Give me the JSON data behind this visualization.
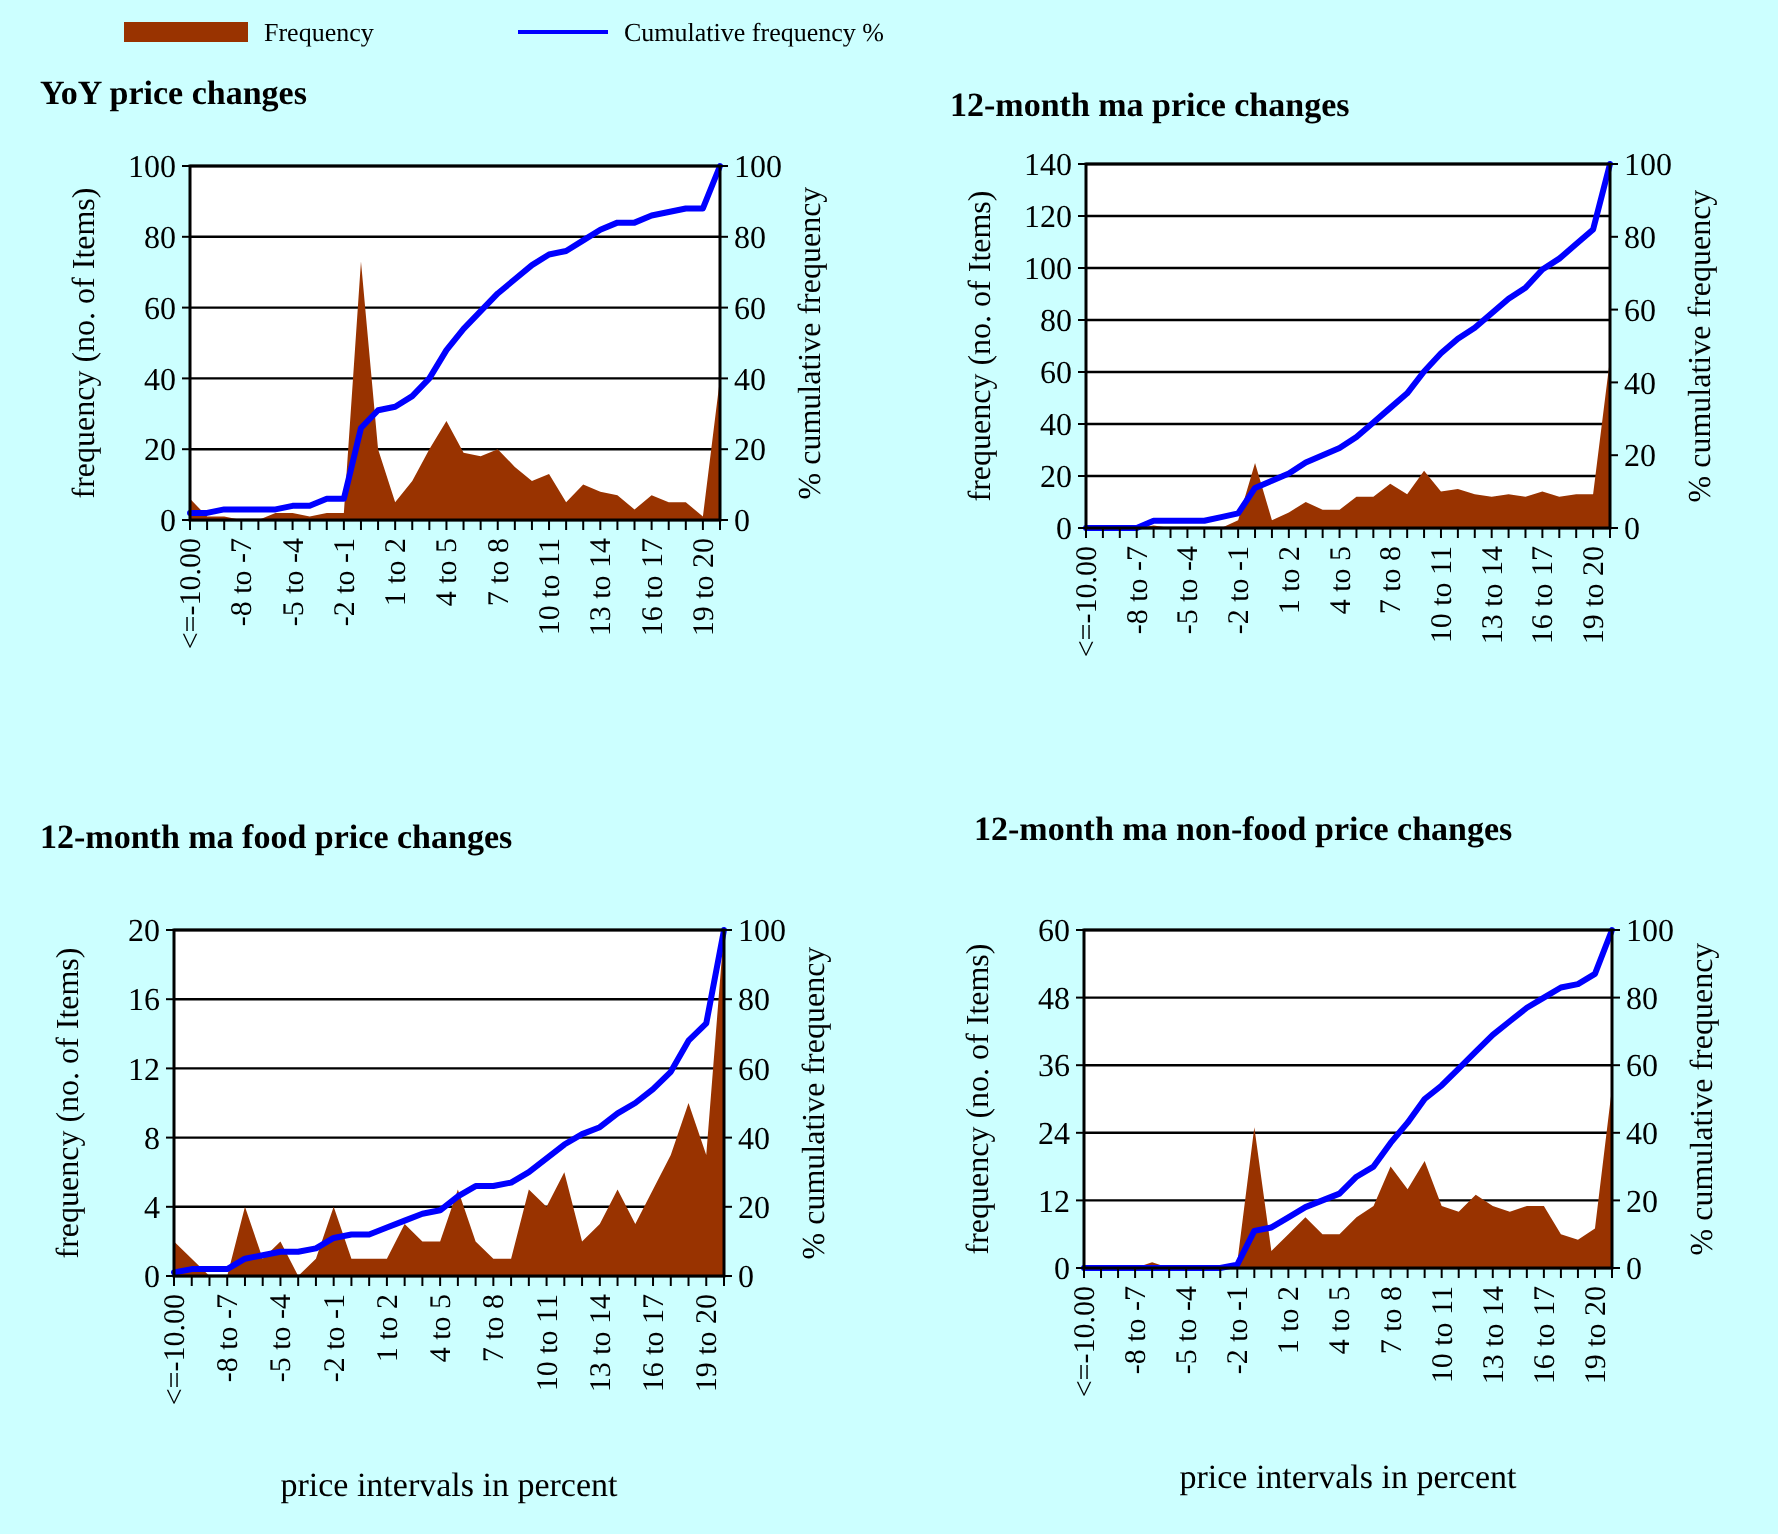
{
  "chart_data": [
    {
      "type": "area",
      "title": "YoY price changes",
      "ylabel": "frequency (no. of Items)",
      "y2label": "% cumulative frequency",
      "categories": [
        "<=-10.00",
        null,
        null,
        "-8 to -7",
        null,
        null,
        "-5 to -4",
        null,
        null,
        "-2 to -1",
        null,
        null,
        "1 to 2",
        null,
        null,
        "4 to 5",
        null,
        null,
        "7 to 8",
        null,
        null,
        "10 to 11",
        null,
        null,
        "13 to 14",
        null,
        null,
        "16 to 17",
        null,
        null,
        "19 to 20",
        null
      ],
      "ylim": [
        0,
        100
      ],
      "yticks": [
        0,
        20,
        40,
        60,
        80,
        100
      ],
      "y2lim": [
        0,
        100
      ],
      "y2ticks": [
        0,
        20,
        40,
        60,
        80,
        100
      ],
      "grid": "y",
      "legend": "top",
      "series": [
        {
          "name": "Frequency",
          "type": "area",
          "color": "#993300",
          "values": [
            6,
            1,
            1,
            0,
            0,
            2,
            2,
            1,
            2,
            2,
            73,
            20,
            5,
            11,
            20,
            28,
            19,
            18,
            20,
            15,
            11,
            13,
            5,
            10,
            8,
            7,
            3,
            7,
            5,
            5,
            1,
            40
          ]
        },
        {
          "name": "Cumulative frequency %",
          "type": "line",
          "axis": "y2",
          "color": "#0000ff",
          "values": [
            2,
            2,
            3,
            3,
            3,
            3,
            4,
            4,
            6,
            6,
            26,
            31,
            32,
            35,
            40,
            48,
            54,
            59,
            64,
            68,
            72,
            75,
            76,
            79,
            82,
            84,
            84,
            86,
            87,
            88,
            88,
            100
          ]
        }
      ]
    },
    {
      "type": "area",
      "title": "12-month ma price changes",
      "ylabel": "frequency (no. of Items)",
      "y2label": "% cumulative frequency",
      "categories": [
        "<=-10.00",
        null,
        null,
        "-8 to -7",
        null,
        null,
        "-5 to -4",
        null,
        null,
        "-2 to -1",
        null,
        null,
        "1 to 2",
        null,
        null,
        "4 to 5",
        null,
        null,
        "7 to 8",
        null,
        null,
        "10 to 11",
        null,
        null,
        "13 to 14",
        null,
        null,
        "16 to 17",
        null,
        null,
        "19 to 20",
        null
      ],
      "ylim": [
        0,
        140
      ],
      "yticks": [
        0,
        20,
        40,
        60,
        80,
        100,
        120,
        140
      ],
      "y2lim": [
        0,
        100
      ],
      "y2ticks": [
        0,
        20,
        40,
        60,
        80,
        100
      ],
      "grid": "y",
      "series": [
        {
          "type": "area",
          "color": "#993300",
          "values": [
            0,
            0,
            0,
            0,
            1,
            0,
            0,
            0,
            0,
            3,
            25,
            3,
            6,
            10,
            7,
            7,
            12,
            12,
            17,
            13,
            22,
            14,
            15,
            13,
            12,
            13,
            12,
            14,
            12,
            13,
            13,
            65
          ]
        },
        {
          "type": "line",
          "axis": "y2",
          "color": "#0000ff",
          "values": [
            0,
            0,
            0,
            0,
            2,
            2,
            2,
            2,
            3,
            4,
            11,
            13,
            15,
            18,
            20,
            22,
            25,
            29,
            33,
            37,
            43,
            48,
            52,
            55,
            59,
            63,
            66,
            71,
            74,
            78,
            82,
            100
          ]
        }
      ]
    },
    {
      "type": "area",
      "title": "12-month ma food price changes",
      "xlabel": "price intervals in percent",
      "ylabel": "frequency (no. of Items)",
      "y2label": "% cumulative frequency",
      "categories": [
        "<=-10.00",
        null,
        null,
        "-8 to -7",
        null,
        null,
        "-5 to -4",
        null,
        null,
        "-2 to -1",
        null,
        null,
        "1 to 2",
        null,
        null,
        "4 to 5",
        null,
        null,
        "7 to 8",
        null,
        null,
        "10 to 11",
        null,
        null,
        "13 to 14",
        null,
        null,
        "16 to 17",
        null,
        null,
        "19 to 20",
        null
      ],
      "ylim": [
        0,
        20
      ],
      "yticks": [
        0,
        4,
        8,
        12,
        16,
        20
      ],
      "y2lim": [
        0,
        100
      ],
      "y2ticks": [
        0,
        20,
        40,
        60,
        80,
        100
      ],
      "grid": "y",
      "series": [
        {
          "type": "area",
          "color": "#993300",
          "values": [
            2,
            1,
            0,
            0,
            4,
            1,
            2,
            0,
            1,
            4,
            1,
            1,
            1,
            3,
            2,
            2,
            5,
            2,
            1,
            1,
            5,
            4,
            6,
            2,
            3,
            5,
            3,
            5,
            7,
            10,
            7,
            20
          ]
        },
        {
          "type": "line",
          "axis": "y2",
          "color": "#0000ff",
          "values": [
            1,
            2,
            2,
            2,
            5,
            6,
            7,
            7,
            8,
            11,
            12,
            12,
            14,
            16,
            18,
            19,
            23,
            26,
            26,
            27,
            30,
            34,
            38,
            41,
            43,
            47,
            50,
            54,
            59,
            68,
            73,
            100
          ]
        }
      ]
    },
    {
      "type": "area",
      "title": "12-month ma non-food price changes",
      "xlabel": "price intervals in percent",
      "ylabel": "frequency (no. of Items)",
      "y2label": "% cumulative frequency",
      "categories": [
        "<=-10.00",
        null,
        null,
        "-8 to -7",
        null,
        null,
        "-5 to -4",
        null,
        null,
        "-2 to -1",
        null,
        null,
        "1 to 2",
        null,
        null,
        "4 to 5",
        null,
        null,
        "7 to 8",
        null,
        null,
        "10 to 11",
        null,
        null,
        "13 to 14",
        null,
        null,
        "16 to 17",
        null,
        null,
        "19 to 20",
        null
      ],
      "ylim": [
        0,
        60
      ],
      "yticks": [
        0,
        12,
        24,
        36,
        48,
        60
      ],
      "y2lim": [
        0,
        100
      ],
      "y2ticks": [
        0,
        20,
        40,
        60,
        80,
        100
      ],
      "grid": "y",
      "series": [
        {
          "type": "area",
          "color": "#993300",
          "values": [
            0,
            0,
            0,
            0,
            1,
            0,
            0,
            0,
            0,
            1,
            25,
            3,
            6,
            9,
            6,
            6,
            9,
            11,
            18,
            14,
            19,
            11,
            10,
            13,
            11,
            10,
            11,
            11,
            6,
            5,
            7,
            32
          ]
        },
        {
          "type": "line",
          "axis": "y2",
          "color": "#0000ff",
          "values": [
            0,
            0,
            0,
            0,
            0,
            0,
            0,
            0,
            0,
            1,
            11,
            12,
            15,
            18,
            20,
            22,
            27,
            30,
            37,
            43,
            50,
            54,
            59,
            64,
            69,
            73,
            77,
            80,
            83,
            84,
            87,
            100
          ]
        }
      ]
    }
  ]
}
